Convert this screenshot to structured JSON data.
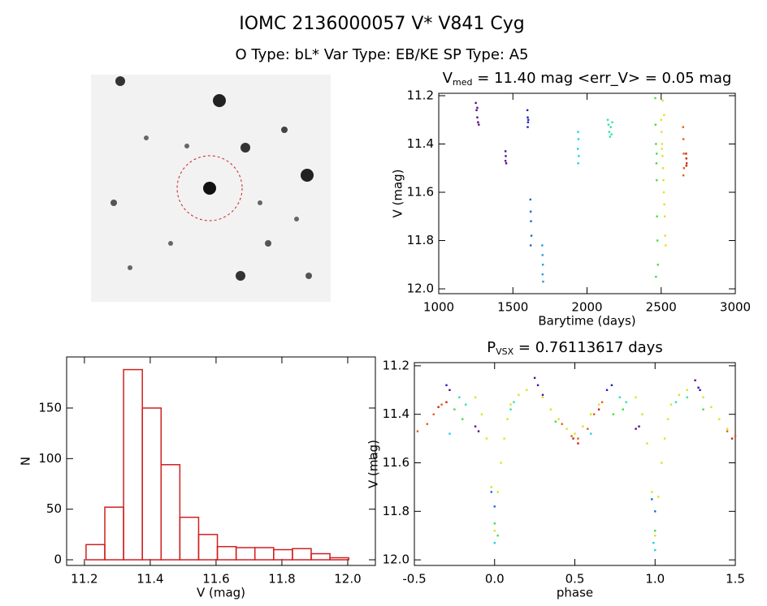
{
  "title": "IOMC 2136000057    V* V841 Cyg",
  "subtitle": "O Type: bL*  Var Type: EB/KE  SP Type: A5",
  "chart_data": [
    {
      "type": "scatter",
      "title": [
        "V",
        "med",
        " = 11.40 mag <err_V> = 0.05 mag"
      ],
      "xlabel": "Barytime (days)",
      "ylabel": "V (mag)",
      "xlim": [
        1000,
        3000
      ],
      "xticks": [
        1000,
        1500,
        2000,
        2500,
        3000
      ],
      "ylim": [
        12.02,
        11.19
      ],
      "yticks": [
        11.2,
        11.4,
        11.6,
        11.8,
        {
          "value": 12,
          "label": "12.0"
        }
      ],
      "series": [
        {
          "color": "#5a0a8a",
          "x": [
            1250,
            1255,
            1260,
            1265,
            1270,
            1260,
            1450,
            1452,
            1455,
            1450
          ],
          "values": [
            11.23,
            11.26,
            11.29,
            11.31,
            11.32,
            11.25,
            11.43,
            11.45,
            11.48,
            11.47
          ]
        },
        {
          "color": "#2020c0",
          "x": [
            1598,
            1600,
            1602,
            1600,
            1604
          ],
          "values": [
            11.26,
            11.29,
            11.31,
            11.33,
            11.3
          ]
        },
        {
          "color": "#1a6ad0",
          "x": [
            1618,
            1620,
            1622,
            1625,
            1620
          ],
          "values": [
            11.63,
            11.68,
            11.72,
            11.78,
            11.82
          ]
        },
        {
          "color": "#2a9ad8",
          "x": [
            1698,
            1700,
            1702,
            1700,
            1704
          ],
          "values": [
            11.82,
            11.86,
            11.9,
            11.94,
            11.97
          ]
        },
        {
          "color": "#20d0e0",
          "x": [
            1940,
            1942,
            1938,
            1945,
            1940
          ],
          "values": [
            11.35,
            11.38,
            11.42,
            11.45,
            11.48
          ]
        },
        {
          "color": "#30e0b0",
          "x": [
            2140,
            2145,
            2150,
            2155,
            2160,
            2165,
            2170
          ],
          "values": [
            11.3,
            11.32,
            11.35,
            11.37,
            11.33,
            11.36,
            11.31
          ]
        },
        {
          "color": "#40e040",
          "x": [
            2460,
            2462,
            2465,
            2468,
            2470,
            2472,
            2475,
            2478,
            2465,
            2470
          ],
          "values": [
            11.21,
            11.32,
            11.4,
            11.48,
            11.55,
            11.7,
            11.8,
            11.9,
            11.95,
            11.44
          ]
        },
        {
          "color": "#e0e020",
          "x": [
            2500,
            2503,
            2506,
            2509,
            2512,
            2515,
            2518,
            2521,
            2524,
            2527,
            2530,
            2510,
            2520,
            2505
          ],
          "values": [
            11.3,
            11.35,
            11.4,
            11.45,
            11.5,
            11.55,
            11.6,
            11.65,
            11.7,
            11.78,
            11.82,
            11.22,
            11.28,
            11.42
          ]
        },
        {
          "color": "#e06010",
          "x": [
            2648,
            2650,
            2652,
            2654,
            2650
          ],
          "values": [
            11.33,
            11.38,
            11.44,
            11.5,
            11.53
          ]
        },
        {
          "color": "#d02010",
          "x": [
            2668,
            2670,
            2672,
            2670
          ],
          "values": [
            11.44,
            11.46,
            11.48,
            11.49
          ]
        }
      ]
    },
    {
      "type": "histogram",
      "xlabel": "V (mag)",
      "ylabel": "N",
      "xlim": [
        11.146,
        12.084
      ],
      "xticks": [
        11.2,
        11.4,
        11.6,
        11.8,
        {
          "value": 12,
          "label": "12.0"
        }
      ],
      "ylim": [
        -5.6,
        200.5
      ],
      "yticks": [
        0,
        50,
        100,
        150
      ],
      "color": "#d02020",
      "bins": [
        11.205,
        11.262,
        11.319,
        11.376,
        11.433,
        11.49,
        11.547,
        11.604,
        11.661,
        11.718,
        11.775,
        11.832,
        11.889,
        11.946,
        12.003
      ],
      "values": [
        15,
        52,
        188,
        150,
        94,
        42,
        25,
        13,
        12,
        12,
        10,
        11,
        6,
        2
      ]
    },
    {
      "type": "scatter",
      "title": [
        "P",
        "VSX",
        " = 0.76113617 days"
      ],
      "xlabel": "phase",
      "ylabel": "V (mag)",
      "xlim": [
        -0.5,
        1.5
      ],
      "xticks": [
        -0.5,
        {
          "value": 0,
          "label": "0.0"
        },
        0.5,
        {
          "value": 1,
          "label": "1.0"
        },
        1.5
      ],
      "ylim": [
        12.023,
        11.187
      ],
      "yticks": [
        11.2,
        11.4,
        11.6,
        11.8,
        {
          "value": 12,
          "label": "12.0"
        }
      ],
      "series": [
        {
          "color": "#e0e020",
          "x": [
            -0.12,
            -0.08,
            -0.05,
            -0.02,
            0.0,
            0.02,
            0.04,
            0.06,
            0.08,
            0.1,
            0.15,
            0.2,
            0.3,
            0.35,
            0.4,
            0.45,
            0.5,
            0.55,
            0.6,
            0.65,
            0.88,
            0.92,
            0.95,
            0.98,
            1.0,
            1.02,
            1.04,
            1.06,
            1.08,
            1.1,
            1.15,
            1.2,
            1.3,
            1.35,
            1.4,
            1.45
          ],
          "values": [
            11.33,
            11.4,
            11.5,
            11.7,
            11.88,
            11.72,
            11.6,
            11.5,
            11.42,
            11.36,
            11.32,
            11.3,
            11.33,
            11.38,
            11.42,
            11.46,
            11.48,
            11.45,
            11.4,
            11.36,
            11.33,
            11.4,
            11.52,
            11.72,
            11.9,
            11.74,
            11.6,
            11.5,
            11.42,
            11.36,
            11.32,
            11.3,
            11.33,
            11.37,
            11.42,
            11.46
          ]
        },
        {
          "color": "#e06010",
          "x": [
            -0.48,
            -0.42,
            -0.38,
            -0.33,
            0.42,
            0.48,
            0.52,
            0.58,
            0.62,
            0.67,
            1.45,
            1.5
          ],
          "values": [
            11.47,
            11.44,
            11.4,
            11.36,
            11.44,
            11.49,
            11.5,
            11.46,
            11.4,
            11.35,
            11.47,
            11.49
          ]
        },
        {
          "color": "#d02010",
          "x": [
            -0.35,
            -0.3,
            0.49,
            0.52,
            0.65,
            1.48
          ],
          "values": [
            11.37,
            11.35,
            11.5,
            11.52,
            11.38,
            11.5
          ]
        },
        {
          "color": "#40e040",
          "x": [
            -0.25,
            -0.2,
            0.0,
            0.02,
            0.38,
            0.74,
            0.8,
            1.0,
            1.3
          ],
          "values": [
            11.38,
            11.42,
            11.85,
            11.9,
            11.43,
            11.4,
            11.38,
            11.88,
            11.38
          ]
        },
        {
          "color": "#30e0b0",
          "x": [
            -0.22,
            -0.18,
            0.12,
            0.1,
            0.78,
            0.82,
            1.13,
            1.2
          ],
          "values": [
            11.33,
            11.36,
            11.35,
            11.38,
            11.33,
            11.35,
            11.35,
            11.33
          ]
        },
        {
          "color": "#20d0e0",
          "x": [
            -0.28,
            0.0,
            0.6,
            0.99,
            1.0
          ],
          "values": [
            11.48,
            11.93,
            11.48,
            11.93,
            11.96
          ]
        },
        {
          "color": "#1a6ad0",
          "x": [
            -0.02,
            0.0,
            0.98,
            1.0
          ],
          "values": [
            11.72,
            11.78,
            11.75,
            11.8
          ]
        },
        {
          "color": "#2020c0",
          "x": [
            -0.3,
            0.73,
            0.7,
            1.27
          ],
          "values": [
            11.28,
            11.28,
            11.3,
            11.29
          ]
        },
        {
          "color": "#5a0a8a",
          "x": [
            -0.28,
            -0.12,
            -0.1,
            0.25,
            0.27,
            0.3,
            0.88,
            0.9,
            1.25,
            1.28
          ],
          "values": [
            11.3,
            11.45,
            11.47,
            11.25,
            11.28,
            11.32,
            11.46,
            11.45,
            11.26,
            11.3
          ]
        }
      ]
    }
  ]
}
